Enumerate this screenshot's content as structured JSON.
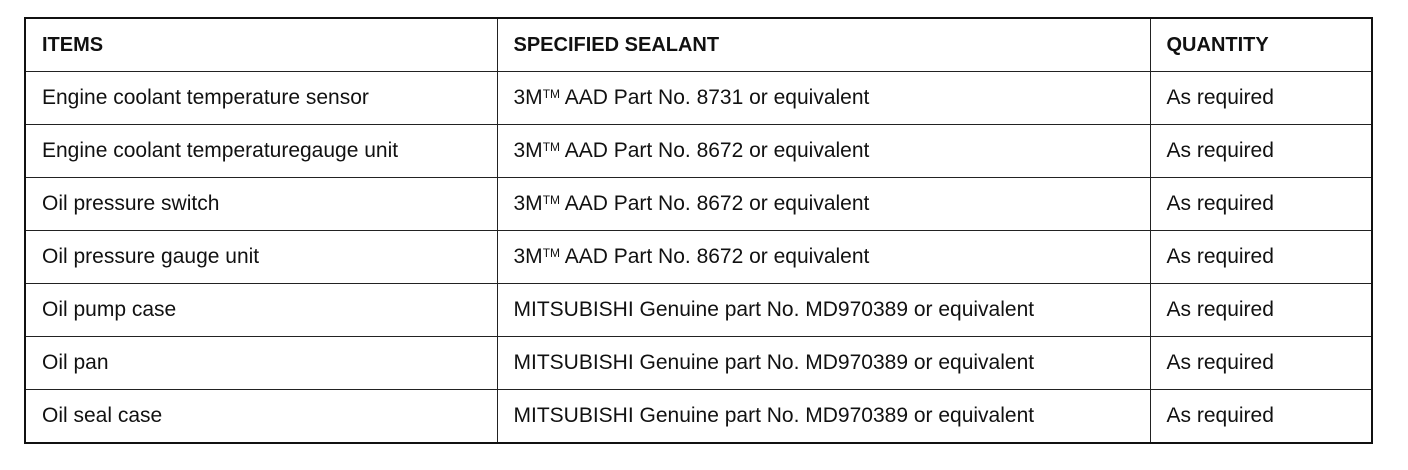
{
  "table": {
    "headers": [
      "ITEMS",
      "SPECIFIED SEALANT",
      "QUANTITY"
    ],
    "rows": [
      {
        "item": "Engine coolant temperature sensor",
        "sealant": "3M™ AAD Part No. 8731 or equivalent",
        "quantity": "As required"
      },
      {
        "item": "Engine coolant temperaturegauge unit",
        "sealant": "3M™ AAD Part No. 8672 or equivalent",
        "quantity": "As required"
      },
      {
        "item": "Oil pressure switch",
        "sealant": "3M™ AAD Part No. 8672 or equivalent",
        "quantity": "As required"
      },
      {
        "item": "Oil pressure gauge unit",
        "sealant": "3M™ AAD Part No. 8672 or equivalent",
        "quantity": "As required"
      },
      {
        "item": "Oil pump case",
        "sealant": "MITSUBISHI Genuine part No. MD970389 or equivalent",
        "quantity": "As required"
      },
      {
        "item": "Oil pan",
        "sealant": "MITSUBISHI Genuine part No. MD970389 or equivalent",
        "quantity": "As required"
      },
      {
        "item": "Oil seal case",
        "sealant": "MITSUBISHI Genuine part No. MD970389 or equivalent",
        "quantity": "As required"
      }
    ]
  }
}
